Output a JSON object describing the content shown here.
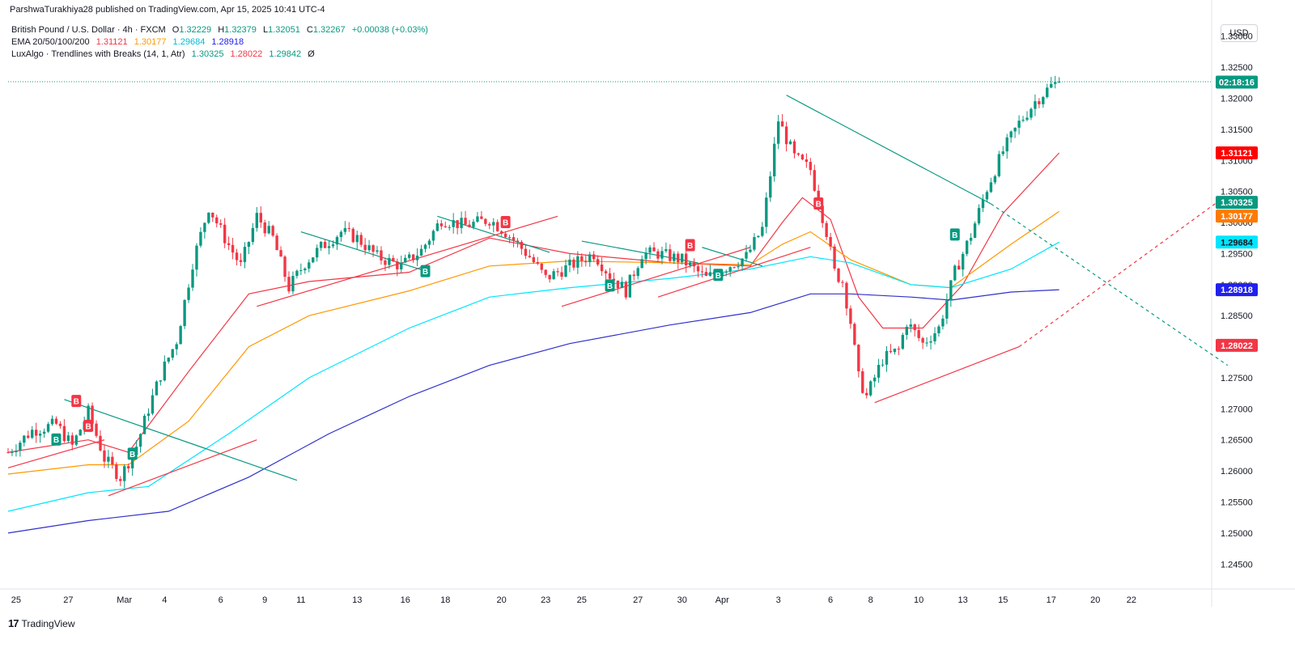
{
  "header": {
    "publisher": "ParshwaTurakhiya28 published on TradingView.com, Apr 15, 2025 10:41 UTC-4"
  },
  "legend": {
    "symbol": "British Pound / U.S. Dollar · 4h · FXCM",
    "o_label": "O",
    "o": "1.32229",
    "h_label": "H",
    "h": "1.32379",
    "l_label": "L",
    "l": "1.32051",
    "c_label": "C",
    "c": "1.32267",
    "change": "+0.00038 (+0.03%)",
    "ema_label": "EMA 20/50/100/200",
    "ema_values": [
      "1.31121",
      "1.30177",
      "1.29684",
      "1.28918"
    ],
    "lux_label": "LuxAlgo · Trendlines with Breaks (14, 1, Atr)",
    "lux_values": [
      "1.30325",
      "1.28022",
      "1.29842"
    ],
    "lux_extra": "Ø",
    "colors": {
      "ema20": "#f23645",
      "ema50": "#ff9800",
      "ema100": "#00e5ff",
      "ema200": "#3030cc",
      "up": "#089981",
      "down": "#f23645"
    }
  },
  "currency_button": "USD",
  "footer": {
    "brand": "TradingView",
    "logo": "17"
  },
  "chart_data": {
    "type": "candlestick",
    "symbol": "GBPUSD",
    "timeframe": "4h",
    "ylim": [
      1.241,
      1.334
    ],
    "y_ticks": [
      "1.33000",
      "1.32500",
      "1.32000",
      "1.31500",
      "1.31000",
      "1.30500",
      "1.30000",
      "1.29500",
      "1.29000",
      "1.28500",
      "1.28000",
      "1.27500",
      "1.27000",
      "1.26500",
      "1.26000",
      "1.25500",
      "1.25000",
      "1.24500"
    ],
    "x_ticks": [
      "25",
      "27",
      "Mar",
      "4",
      "6",
      "9",
      "11",
      "13",
      "16",
      "18",
      "20",
      "23",
      "25",
      "27",
      "30",
      "Apr",
      "3",
      "6",
      "8",
      "10",
      "13",
      "15",
      "17",
      "20",
      "22"
    ],
    "x_tick_index": [
      2,
      15,
      29,
      39,
      53,
      64,
      73,
      87,
      99,
      109,
      123,
      134,
      143,
      157,
      168,
      178,
      192,
      205,
      215,
      227,
      238,
      248,
      260,
      271,
      280
    ],
    "price_path": [
      [
        0,
        1.263
      ],
      [
        6,
        1.2665
      ],
      [
        12,
        1.2675
      ],
      [
        16,
        1.264
      ],
      [
        20,
        1.2695
      ],
      [
        24,
        1.262
      ],
      [
        28,
        1.259
      ],
      [
        32,
        1.264
      ],
      [
        35,
        1.27
      ],
      [
        38,
        1.2755
      ],
      [
        42,
        1.281
      ],
      [
        46,
        1.2935
      ],
      [
        50,
        1.3025
      ],
      [
        54,
        1.2975
      ],
      [
        58,
        1.293
      ],
      [
        62,
        1.301
      ],
      [
        66,
        1.2975
      ],
      [
        70,
        1.2895
      ],
      [
        74,
        1.2935
      ],
      [
        78,
        1.296
      ],
      [
        83,
        1.2985
      ],
      [
        87,
        1.2975
      ],
      [
        92,
        1.2945
      ],
      [
        98,
        1.293
      ],
      [
        103,
        1.2955
      ],
      [
        108,
        1.3005
      ],
      [
        114,
        1.2995
      ],
      [
        120,
        1.3005
      ],
      [
        124,
        1.2985
      ],
      [
        130,
        1.2945
      ],
      [
        134,
        1.291
      ],
      [
        140,
        1.293
      ],
      [
        146,
        1.295
      ],
      [
        150,
        1.2915
      ],
      [
        154,
        1.289
      ],
      [
        158,
        1.295
      ],
      [
        162,
        1.295
      ],
      [
        168,
        1.294
      ],
      [
        174,
        1.291
      ],
      [
        178,
        1.2925
      ],
      [
        184,
        1.2945
      ],
      [
        188,
        1.299
      ],
      [
        192,
        1.3165
      ],
      [
        196,
        1.3105
      ],
      [
        200,
        1.3085
      ],
      [
        204,
        1.2985
      ],
      [
        206,
        1.292
      ],
      [
        208,
        1.2905
      ],
      [
        210,
        1.284
      ],
      [
        212,
        1.275
      ],
      [
        214,
        1.272
      ],
      [
        218,
        1.278
      ],
      [
        222,
        1.2795
      ],
      [
        224,
        1.284
      ],
      [
        228,
        1.2805
      ],
      [
        232,
        1.283
      ],
      [
        236,
        1.292
      ],
      [
        240,
        1.298
      ],
      [
        244,
        1.3055
      ],
      [
        248,
        1.3115
      ],
      [
        252,
        1.316
      ],
      [
        256,
        1.3195
      ],
      [
        260,
        1.322
      ],
      [
        262,
        1.32267
      ]
    ],
    "candle_count": 263,
    "series": [
      {
        "name": "EMA 20",
        "color": "#f23645",
        "last": 1.31121,
        "points": [
          [
            0,
            1.263
          ],
          [
            20,
            1.265
          ],
          [
            30,
            1.263
          ],
          [
            45,
            1.276
          ],
          [
            60,
            1.2885
          ],
          [
            75,
            1.2905
          ],
          [
            100,
            1.292
          ],
          [
            120,
            1.2975
          ],
          [
            140,
            1.295
          ],
          [
            165,
            1.2935
          ],
          [
            185,
            1.293
          ],
          [
            193,
            1.3
          ],
          [
            198,
            1.304
          ],
          [
            205,
            1.3005
          ],
          [
            212,
            1.288
          ],
          [
            218,
            1.283
          ],
          [
            228,
            1.283
          ],
          [
            238,
            1.29
          ],
          [
            248,
            1.3015
          ],
          [
            262,
            1.3112
          ]
        ]
      },
      {
        "name": "EMA 50",
        "color": "#ff9800",
        "last": 1.30177,
        "points": [
          [
            0,
            1.2595
          ],
          [
            20,
            1.261
          ],
          [
            30,
            1.261
          ],
          [
            45,
            1.268
          ],
          [
            60,
            1.28
          ],
          [
            75,
            1.285
          ],
          [
            100,
            1.289
          ],
          [
            120,
            1.293
          ],
          [
            140,
            1.2938
          ],
          [
            165,
            1.2935
          ],
          [
            185,
            1.2932
          ],
          [
            193,
            1.2965
          ],
          [
            200,
            1.2985
          ],
          [
            210,
            1.294
          ],
          [
            225,
            1.29
          ],
          [
            235,
            1.2895
          ],
          [
            250,
            1.2965
          ],
          [
            262,
            1.30177
          ]
        ]
      },
      {
        "name": "EMA 100",
        "color": "#00e5ff",
        "last": 1.29684,
        "points": [
          [
            0,
            1.2535
          ],
          [
            20,
            1.2565
          ],
          [
            35,
            1.2575
          ],
          [
            55,
            1.266
          ],
          [
            75,
            1.275
          ],
          [
            100,
            1.283
          ],
          [
            120,
            1.288
          ],
          [
            140,
            1.2895
          ],
          [
            165,
            1.291
          ],
          [
            185,
            1.2925
          ],
          [
            200,
            1.2945
          ],
          [
            210,
            1.2935
          ],
          [
            225,
            1.29
          ],
          [
            235,
            1.2895
          ],
          [
            250,
            1.2925
          ],
          [
            262,
            1.29684
          ]
        ]
      },
      {
        "name": "EMA 200",
        "color": "#3030cc",
        "last": 1.28918,
        "points": [
          [
            0,
            1.25
          ],
          [
            20,
            1.252
          ],
          [
            40,
            1.2535
          ],
          [
            60,
            1.259
          ],
          [
            80,
            1.266
          ],
          [
            100,
            1.272
          ],
          [
            120,
            1.277
          ],
          [
            140,
            1.2805
          ],
          [
            165,
            1.2835
          ],
          [
            185,
            1.2855
          ],
          [
            200,
            1.2885
          ],
          [
            210,
            1.2885
          ],
          [
            225,
            1.288
          ],
          [
            235,
            1.2875
          ],
          [
            250,
            1.2888
          ],
          [
            262,
            1.28918
          ]
        ]
      }
    ],
    "trendlines": [
      {
        "name": "resistance",
        "color": "#089981",
        "points": [
          [
            14,
            1.2715
          ],
          [
            72,
            1.2585
          ]
        ]
      },
      {
        "name": "resistance",
        "color": "#089981",
        "points": [
          [
            73,
            1.2985
          ],
          [
            105,
            1.292
          ]
        ]
      },
      {
        "name": "resistance",
        "color": "#089981",
        "points": [
          [
            107,
            1.301
          ],
          [
            135,
            1.2952
          ]
        ]
      },
      {
        "name": "resistance",
        "color": "#089981",
        "points": [
          [
            143,
            1.297
          ],
          [
            172,
            1.2935
          ]
        ]
      },
      {
        "name": "resistance",
        "color": "#089981",
        "points": [
          [
            173,
            1.296
          ],
          [
            188,
            1.293
          ]
        ]
      },
      {
        "name": "resistance",
        "color": "#089981",
        "points": [
          [
            194,
            1.3205
          ],
          [
            245,
            1.303
          ]
        ]
      },
      {
        "name": "resistance-projection",
        "color": "#089981",
        "dashed": true,
        "points": [
          [
            245,
            1.303
          ],
          [
            304,
            1.277
          ]
        ]
      },
      {
        "name": "support",
        "color": "#f23645",
        "points": [
          [
            0,
            1.2605
          ],
          [
            24,
            1.265
          ]
        ]
      },
      {
        "name": "support",
        "color": "#f23645",
        "points": [
          [
            25,
            1.256
          ],
          [
            62,
            1.265
          ]
        ]
      },
      {
        "name": "support",
        "color": "#f23645",
        "points": [
          [
            62,
            1.2865
          ],
          [
            137,
            1.301
          ]
        ]
      },
      {
        "name": "support",
        "color": "#f23645",
        "points": [
          [
            138,
            1.2865
          ],
          [
            185,
            1.296
          ]
        ]
      },
      {
        "name": "support",
        "color": "#f23645",
        "points": [
          [
            162,
            1.288
          ],
          [
            200,
            1.296
          ]
        ]
      },
      {
        "name": "support",
        "color": "#f23645",
        "points": [
          [
            216,
            1.271
          ],
          [
            252,
            1.28
          ]
        ]
      },
      {
        "name": "support-projection",
        "color": "#f23645",
        "dashed": true,
        "points": [
          [
            252,
            1.28
          ],
          [
            304,
            1.3045
          ]
        ]
      }
    ],
    "signals": [
      {
        "type": "B",
        "kind": "buy",
        "color": "#089981",
        "x": 12,
        "y": 1.265
      },
      {
        "type": "B",
        "kind": "sell",
        "color": "#f23645",
        "x": 17,
        "y": 1.2712
      },
      {
        "type": "B",
        "kind": "sell",
        "color": "#f23645",
        "x": 20,
        "y": 1.2672
      },
      {
        "type": "B",
        "kind": "buy",
        "color": "#089981",
        "x": 31,
        "y": 1.2627
      },
      {
        "type": "B",
        "kind": "buy",
        "color": "#089981",
        "x": 104,
        "y": 1.2921
      },
      {
        "type": "B",
        "kind": "sell",
        "color": "#f23645",
        "x": 124,
        "y": 1.3
      },
      {
        "type": "B",
        "kind": "buy",
        "color": "#089981",
        "x": 150,
        "y": 1.2898
      },
      {
        "type": "B",
        "kind": "sell",
        "color": "#f23645",
        "x": 170,
        "y": 1.2963
      },
      {
        "type": "B",
        "kind": "buy",
        "color": "#089981",
        "x": 177,
        "y": 1.2915
      },
      {
        "type": "B",
        "kind": "sell",
        "color": "#f23645",
        "x": 202,
        "y": 1.303
      },
      {
        "type": "B",
        "kind": "buy",
        "color": "#089981",
        "x": 236,
        "y": 1.298
      }
    ],
    "current_price": 1.32267,
    "price_labels": [
      {
        "text": "02:18:16",
        "value": 1.3226,
        "bg": "#089981",
        "fg": "#ffffff"
      },
      {
        "text": "1.31121",
        "value": 1.31121,
        "bg": "#ff0000",
        "fg": "#ffffff"
      },
      {
        "text": "1.30325",
        "value": 1.30325,
        "bg": "#089981",
        "fg": "#ffffff"
      },
      {
        "text": "1.30177",
        "value": 1.30177,
        "bg": "#ff7a00",
        "fg": "#ffffff"
      },
      {
        "text": "1.29684",
        "value": 1.29684,
        "bg": "#00e5ff",
        "fg": "#131722"
      },
      {
        "text": "1.28918",
        "value": 1.28918,
        "bg": "#2020ee",
        "fg": "#ffffff"
      },
      {
        "text": "1.28022",
        "value": 1.28022,
        "bg": "#f23645",
        "fg": "#ffffff"
      }
    ]
  }
}
